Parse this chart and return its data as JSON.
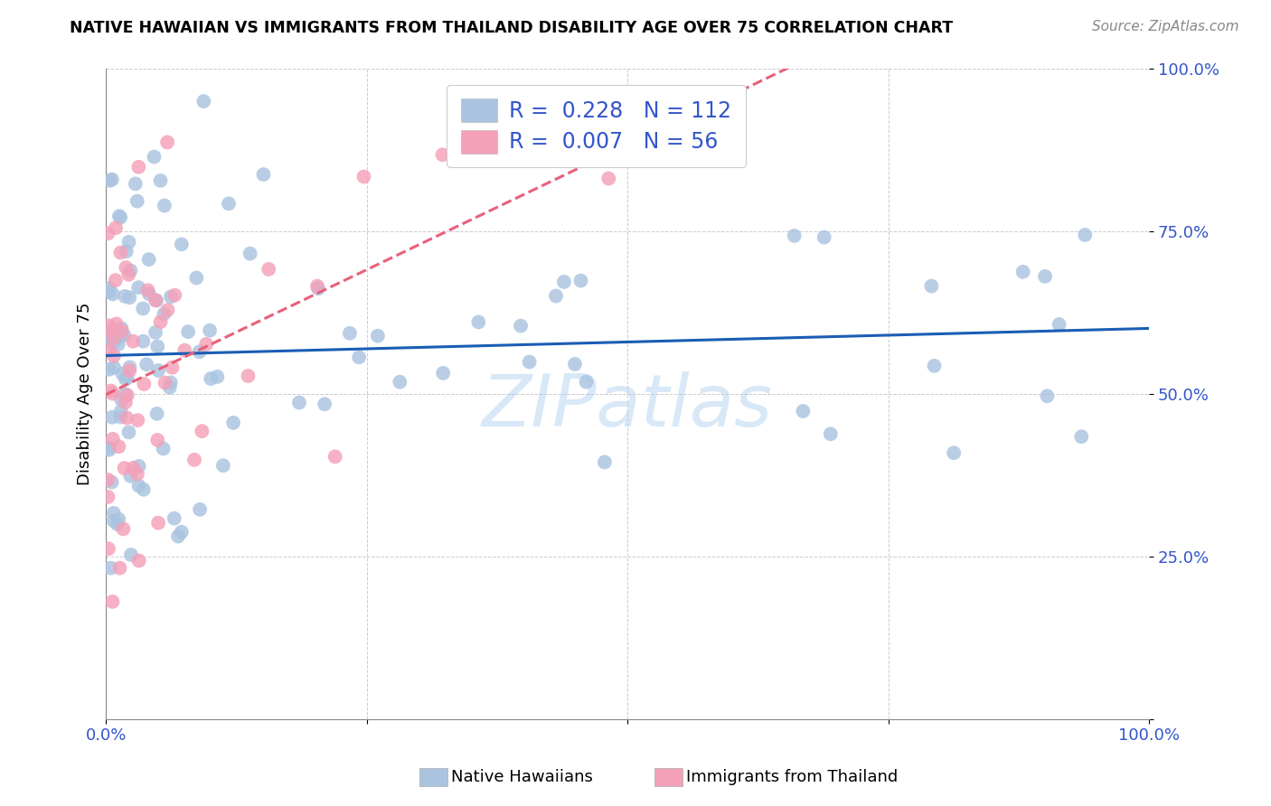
{
  "title": "NATIVE HAWAIIAN VS IMMIGRANTS FROM THAILAND DISABILITY AGE OVER 75 CORRELATION CHART",
  "source": "Source: ZipAtlas.com",
  "ylabel": "Disability Age Over 75",
  "legend_label1": "Native Hawaiians",
  "legend_label2": "Immigrants from Thailand",
  "R1": 0.228,
  "N1": 112,
  "R2": 0.007,
  "N2": 56,
  "color1": "#aac4e0",
  "color2": "#f4a0b8",
  "line_color1": "#1a5db5",
  "line_color2": "#e8607a",
  "line_color2_text": "#dd5577",
  "watermark": "ZIPatlas",
  "figsize": [
    14.06,
    8.92
  ],
  "dpi": 100,
  "legend_text_color": "#3355cc",
  "title_fontsize": 12.5,
  "source_fontsize": 11
}
